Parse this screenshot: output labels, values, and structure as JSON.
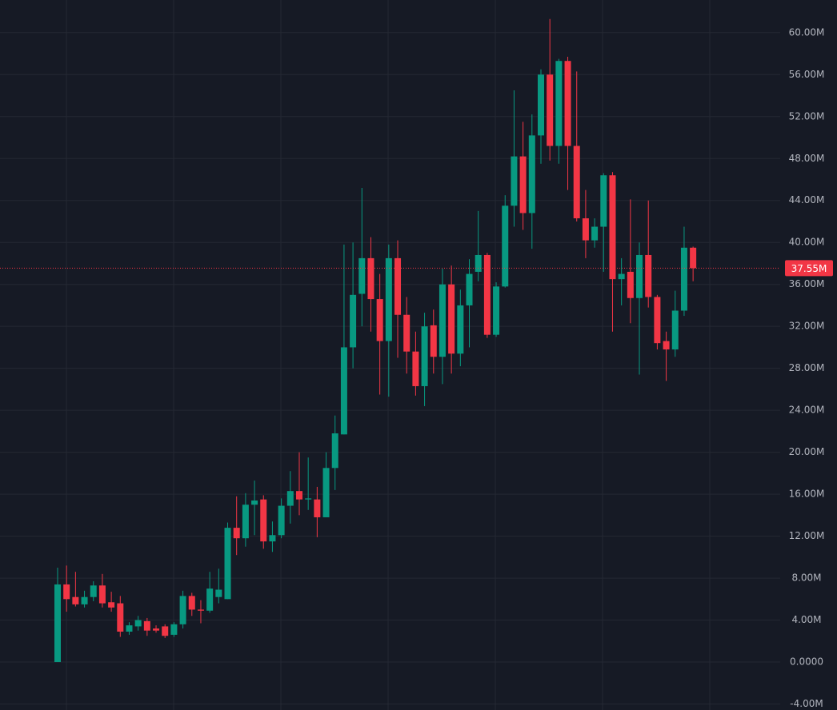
{
  "chart_data": {
    "type": "candlestick",
    "up_color": "#089981",
    "down_color": "#f23645",
    "grid": true,
    "ylim": [
      -4570000.0,
      63110000.0
    ],
    "yticks": [
      {
        "value": -4000000.0,
        "label": "-4.00M"
      },
      {
        "value": 0,
        "label": "0.0000"
      },
      {
        "value": 4000000.0,
        "label": "4.00M"
      },
      {
        "value": 8000000.0,
        "label": "8.00M"
      },
      {
        "value": 12000000.0,
        "label": "12.00M"
      },
      {
        "value": 16000000.0,
        "label": "16.00M"
      },
      {
        "value": 20000000.0,
        "label": "20.00M"
      },
      {
        "value": 24000000.0,
        "label": "24.00M"
      },
      {
        "value": 28000000.0,
        "label": "28.00M"
      },
      {
        "value": 32000000.0,
        "label": "32.00M"
      },
      {
        "value": 36000000.0,
        "label": "36.00M"
      },
      {
        "value": 40000000.0,
        "label": "40.00M"
      },
      {
        "value": 44000000.0,
        "label": "44.00M"
      },
      {
        "value": 48000000.0,
        "label": "48.00M"
      },
      {
        "value": 52000000.0,
        "label": "52.00M"
      },
      {
        "value": 56000000.0,
        "label": "56.00M"
      },
      {
        "value": 60000000.0,
        "label": "60.00M"
      }
    ],
    "last_price": {
      "value": 37550000.0,
      "label": "37.55M"
    },
    "open": [
      0,
      7400000.0,
      6200000.0,
      5500000.0,
      6200000.0,
      7300000.0,
      5700000.0,
      5600000.0,
      2900000.0,
      3400000.0,
      3900000.0,
      3200000.0,
      3400000.0,
      2600000.0,
      3600000.0,
      6300000.0,
      5000000.0,
      4900000.0,
      6200000.0,
      6000000.0,
      12800000.0,
      11800000.0,
      15000000.0,
      15500000.0,
      11500000.0,
      12100000.0,
      14900000.0,
      16300000.0,
      15500000.0,
      15500000.0,
      13800000.0,
      18500000.0,
      21700000.0,
      30000000.0,
      35100000.0,
      38500000.0,
      34600000.0,
      30600000.0,
      38500000.0,
      33100000.0,
      29600000.0,
      26300000.0,
      32100000.0,
      29100000.0,
      36000000.0,
      29400000.0,
      34000000.0,
      37200000.0,
      38800000.0,
      31200000.0,
      35800000.0,
      43500000.0,
      48200000.0,
      42800000.0,
      50200000.0,
      56000000.0,
      49200000.0,
      57300000.0,
      49200000.0,
      42300000.0,
      40200000.0,
      41500000.0,
      46400000.0,
      36500000.0,
      37200000.0,
      34700000.0,
      38800000.0,
      34800000.0,
      30600000.0,
      29800000.0,
      33500000.0,
      39500000.0
    ],
    "high": [
      9000000.0,
      9200000.0,
      8600000.0,
      6800000.0,
      7700000.0,
      8400000.0,
      6700000.0,
      6300000.0,
      3800000.0,
      4400000.0,
      4200000.0,
      3500000.0,
      3600000.0,
      3800000.0,
      6800000.0,
      6600000.0,
      5900000.0,
      8600000.0,
      8900000.0,
      13300000.0,
      15800000.0,
      16100000.0,
      17300000.0,
      15900000.0,
      13400000.0,
      15600000.0,
      18200000.0,
      20000000.0,
      19500000.0,
      16700000.0,
      20000000.0,
      23500000.0,
      39800000.0,
      40000000.0,
      45200000.0,
      40500000.0,
      37000000.0,
      39800000.0,
      40200000.0,
      34800000.0,
      31500000.0,
      33300000.0,
      33600000.0,
      37500000.0,
      37800000.0,
      35500000.0,
      38400000.0,
      43000000.0,
      39000000.0,
      36200000.0,
      44500000.0,
      54500000.0,
      51500000.0,
      52200000.0,
      56500000.0,
      61300000.0,
      57500000.0,
      57700000.0,
      56300000.0,
      45000000.0,
      42300000.0,
      46600000.0,
      46700000.0,
      38500000.0,
      44100000.0,
      40000000.0,
      44000000.0,
      35000000.0,
      31500000.0,
      35400000.0,
      41500000.0,
      39600000.0
    ],
    "low": [
      0,
      4800000.0,
      5300000.0,
      5200000.0,
      5800000.0,
      5200000.0,
      4800000.0,
      2400000.0,
      2600000.0,
      3000000.0,
      2500000.0,
      2800000.0,
      2300000.0,
      2400000.0,
      3200000.0,
      4400000.0,
      3700000.0,
      4700000.0,
      5600000.0,
      6000000.0,
      10200000.0,
      11000000.0,
      12100000.0,
      10800000.0,
      10500000.0,
      11800000.0,
      13200000.0,
      14000000.0,
      14500000.0,
      11900000.0,
      13800000.0,
      16400000.0,
      21700000.0,
      28000000.0,
      32000000.0,
      31500000.0,
      25500000.0,
      25300000.0,
      29000000.0,
      27500000.0,
      25400000.0,
      24400000.0,
      27500000.0,
      26500000.0,
      27500000.0,
      28200000.0,
      30000000.0,
      36300000.0,
      30900000.0,
      31000000.0,
      35700000.0,
      41500000.0,
      41200000.0,
      39400000.0,
      47500000.0,
      47800000.0,
      47500000.0,
      45000000.0,
      42000000.0,
      38500000.0,
      39500000.0,
      37200000.0,
      31500000.0,
      34000000.0,
      32300000.0,
      27400000.0,
      33800000.0,
      29800000.0,
      26800000.0,
      29100000.0,
      33000000.0,
      36300000.0
    ],
    "close": [
      7400000.0,
      6000000.0,
      5500000.0,
      6200000.0,
      7300000.0,
      5600000.0,
      5200000.0,
      2900000.0,
      3500000.0,
      4000000.0,
      3000000.0,
      3000000.0,
      2500000.0,
      3600000.0,
      6300000.0,
      5000000.0,
      4900000.0,
      7000000.0,
      6900000.0,
      12800000.0,
      11800000.0,
      15000000.0,
      15400000.0,
      11500000.0,
      12100000.0,
      14900000.0,
      16300000.0,
      15500000.0,
      15600000.0,
      13800000.0,
      18500000.0,
      21800000.0,
      30000000.0,
      35000000.0,
      38500000.0,
      34600000.0,
      30600000.0,
      38500000.0,
      33100000.0,
      29600000.0,
      26300000.0,
      32000000.0,
      29100000.0,
      36000000.0,
      29400000.0,
      34000000.0,
      37000000.0,
      38800000.0,
      31200000.0,
      35800000.0,
      43500000.0,
      48200000.0,
      42800000.0,
      50200000.0,
      56000000.0,
      49200000.0,
      57300000.0,
      49200000.0,
      42300000.0,
      40200000.0,
      41500000.0,
      46400000.0,
      36500000.0,
      37000000.0,
      34700000.0,
      38800000.0,
      34800000.0,
      30400000.0,
      29800000.0,
      33500000.0,
      39500000.0,
      37550000.0
    ]
  }
}
